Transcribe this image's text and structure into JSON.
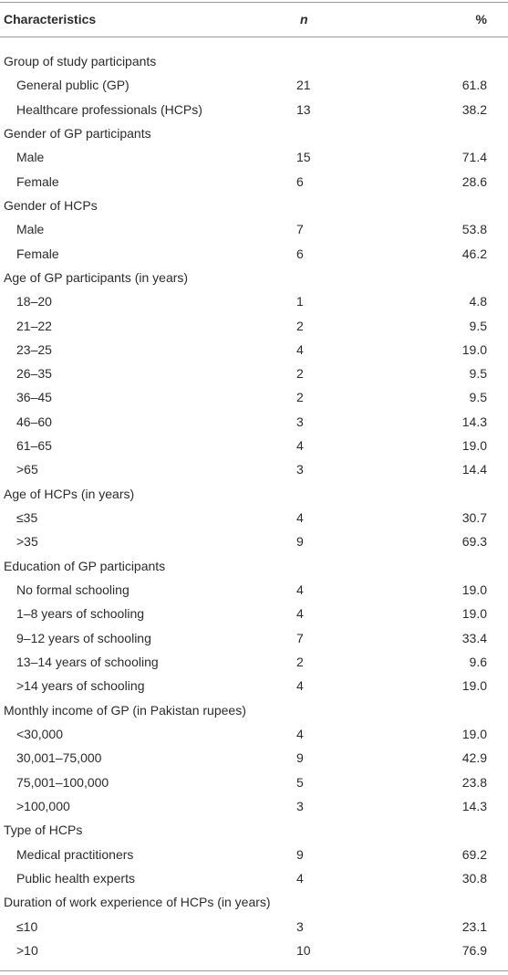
{
  "table": {
    "header": [
      "Characteristics",
      "n",
      "%"
    ],
    "groups": [
      {
        "title": "Group of study participants",
        "rows": [
          [
            "General public (GP)",
            "21",
            "61.8"
          ],
          [
            "Healthcare professionals (HCPs)",
            "13",
            "38.2"
          ]
        ]
      },
      {
        "title": "Gender of GP participants",
        "rows": [
          [
            "Male",
            "15",
            "71.4"
          ],
          [
            "Female",
            "6",
            "28.6"
          ]
        ]
      },
      {
        "title": "Gender of HCPs",
        "rows": [
          [
            "Male",
            "7",
            "53.8"
          ],
          [
            "Female",
            "6",
            "46.2"
          ]
        ]
      },
      {
        "title": "Age of GP participants (in years)",
        "rows": [
          [
            "18–20",
            "1",
            "4.8"
          ],
          [
            "21–22",
            "2",
            "9.5"
          ],
          [
            "23–25",
            "4",
            "19.0"
          ],
          [
            "26–35",
            "2",
            "9.5"
          ],
          [
            "36–45",
            "2",
            "9.5"
          ],
          [
            "46–60",
            "3",
            "14.3"
          ],
          [
            "61–65",
            "4",
            "19.0"
          ],
          [
            ">65",
            "3",
            "14.4"
          ]
        ]
      },
      {
        "title": "Age of HCPs (in years)",
        "rows": [
          [
            "≤35",
            "4",
            "30.7"
          ],
          [
            ">35",
            "9",
            "69.3"
          ]
        ]
      },
      {
        "title": "Education of GP participants",
        "rows": [
          [
            "No formal schooling",
            "4",
            "19.0"
          ],
          [
            "1–8 years of schooling",
            "4",
            "19.0"
          ],
          [
            "9–12 years of schooling",
            "7",
            "33.4"
          ],
          [
            "13–14 years of schooling",
            "2",
            "9.6"
          ],
          [
            ">14 years of schooling",
            "4",
            "19.0"
          ]
        ]
      },
      {
        "title": "Monthly income of GP (in Pakistan rupees)",
        "rows": [
          [
            "<30,000",
            "4",
            "19.0"
          ],
          [
            "30,001–75,000",
            "9",
            "42.9"
          ],
          [
            "75,001–100,000",
            "5",
            "23.8"
          ],
          [
            ">100,000",
            "3",
            "14.3"
          ]
        ]
      },
      {
        "title": "Type of HCPs",
        "rows": [
          [
            "Medical practitioners",
            "9",
            "69.2"
          ],
          [
            "Public health experts",
            "4",
            "30.8"
          ]
        ]
      },
      {
        "title": "Duration of work experience of HCPs (in years)",
        "rows": [
          [
            "≤10",
            "3",
            "23.1"
          ],
          [
            ">10",
            "10",
            "76.9"
          ]
        ]
      }
    ]
  }
}
